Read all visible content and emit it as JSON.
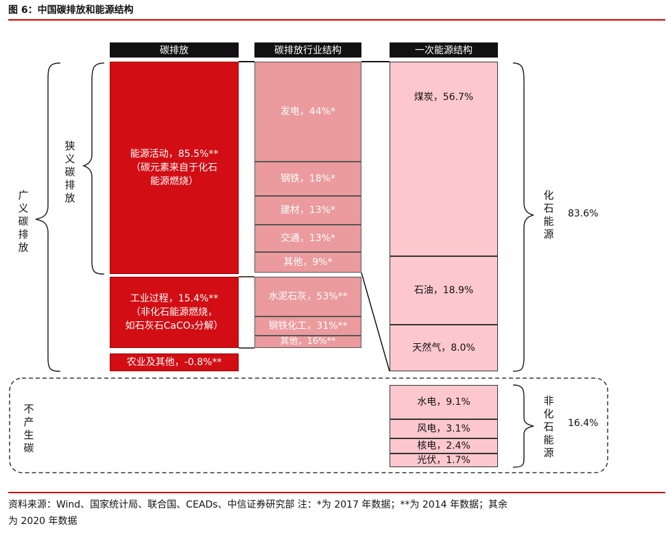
{
  "title": "图 6：中国碳排放和能源结构",
  "headers": {
    "emission": "碳排放",
    "industry": "碳排放行业结构",
    "energy": "一次能源结构"
  },
  "emission": {
    "energy_activity": [
      "能源活动，85.5%**",
      "（碳元素来自于化石",
      "能源燃烧）"
    ],
    "industrial_process": [
      "工业过程，15.4%**",
      "（非化石能源燃烧，",
      "如石灰石CaCO₃分解）"
    ],
    "agriculture": "农业及其他，-0.8%**"
  },
  "industry": {
    "power": "发电，44%*",
    "steel": "钢铁，18%*",
    "building": "建材，13%*",
    "transport": "交通，13%*",
    "other": "其他，9%*",
    "cement": "水泥石灰，53%**",
    "steel_chem": "钢铁化工，31%**",
    "other2": "其他，16%**"
  },
  "energy": {
    "coal": "煤炭，56.7%",
    "oil": "石油，18.9%",
    "gas": "天然气，8.0%",
    "hydro": "水电，9.1%",
    "wind": "风电，3.1%",
    "nuclear": "核电，2.4%",
    "solar": "光伏，1.7%"
  },
  "brackets": {
    "broad": "广义碳排放",
    "narrow": "狭义碳排放",
    "no_carbon": "不产生碳",
    "fossil": "化石能源",
    "fossil_pct": "83.6%",
    "nonfossil": "非化石能源",
    "nonfossil_pct": "16.4%"
  },
  "footer": {
    "line1": "资料来源：Wind、国家统计局、联合国、CEADs、中信证券研究部 注：*为 2017 年数据；**为 2014 年数据；其余",
    "line2": "为 2020 年数据"
  },
  "colors": {
    "accent": "#d40000",
    "emission_red": "#d20d14",
    "industry_pink": "#eb9a9d",
    "energy_pink": "#fcc8cd"
  }
}
